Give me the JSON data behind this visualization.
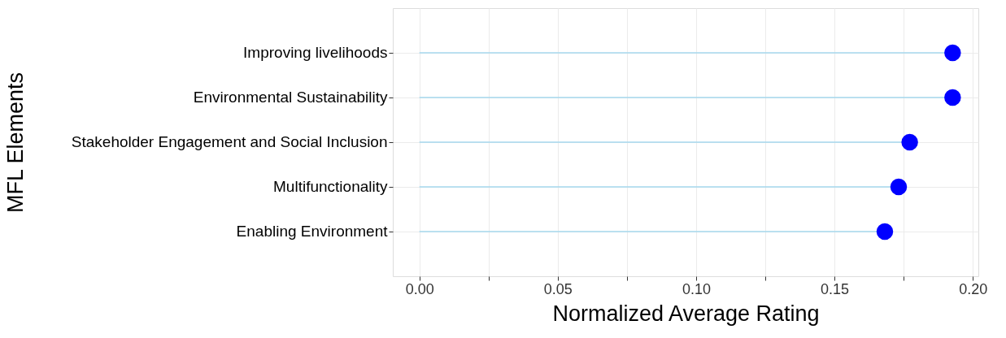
{
  "chart_data": {
    "type": "lollipop",
    "orientation": "horizontal",
    "xlabel": "Normalized  Average Rating",
    "ylabel": "MFL Elements",
    "categories": [
      "Improving livelihoods",
      "Environmental Sustainability",
      "Stakeholder Engagement and Social Inclusion",
      "Multifunctionality",
      "Enabling Environment"
    ],
    "series": [
      {
        "color": "#0000ff",
        "values": [
          0.1927,
          0.1927,
          0.1772,
          0.1732,
          0.1682
        ]
      }
    ],
    "xlim": [
      -0.0096,
      0.202
    ],
    "xticks": [
      {
        "value": 0.0,
        "label": "0.00"
      },
      {
        "value": 0.025,
        "label": null
      },
      {
        "value": 0.05,
        "label": "0.05"
      },
      {
        "value": 0.075,
        "label": null
      },
      {
        "value": 0.1,
        "label": "0.10"
      },
      {
        "value": 0.125,
        "label": null
      },
      {
        "value": 0.15,
        "label": "0.15"
      },
      {
        "value": 0.175,
        "label": null
      },
      {
        "value": 0.2,
        "label": "0.20"
      }
    ],
    "grid": true,
    "marker": "circle"
  }
}
